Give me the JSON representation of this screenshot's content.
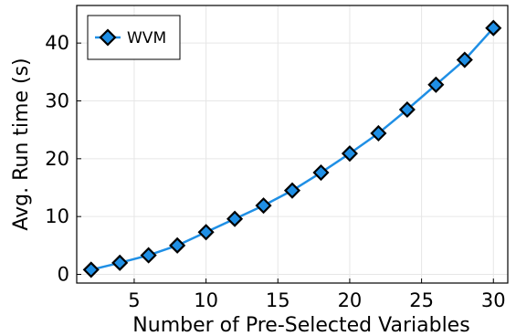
{
  "chart_data": {
    "type": "line",
    "title": "",
    "xlabel": "Number of Pre-Selected Variables",
    "ylabel": "Avg. Run time (s)",
    "xlim": [
      1,
      31
    ],
    "ylim": [
      -1.5,
      46.5
    ],
    "xticks": [
      5,
      10,
      15,
      20,
      25,
      30
    ],
    "yticks": [
      0,
      10,
      20,
      30,
      40
    ],
    "grid": true,
    "legend_position": "top-left",
    "series": [
      {
        "name": "WVM",
        "color": "#1f8fe5",
        "marker": "diamond",
        "x": [
          2,
          4,
          6,
          8,
          10,
          12,
          14,
          16,
          18,
          20,
          22,
          24,
          26,
          28,
          30
        ],
        "y": [
          0.8,
          2.0,
          3.3,
          5.0,
          7.3,
          9.6,
          11.9,
          14.5,
          17.6,
          20.9,
          24.4,
          28.5,
          32.8,
          37.1,
          42.6
        ]
      }
    ]
  }
}
